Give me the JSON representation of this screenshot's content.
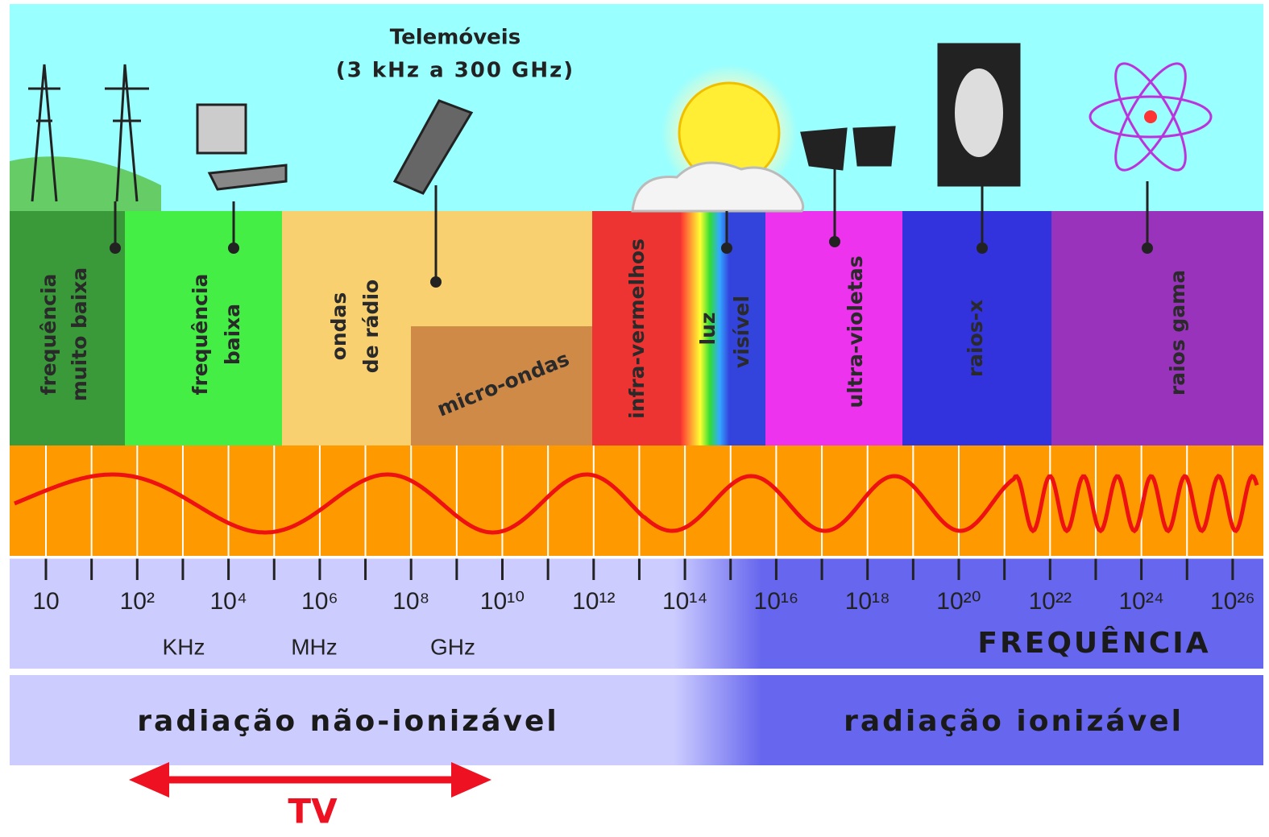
{
  "header": {
    "phones": [
      "Telemóveis",
      "(3 kHz a 300 GHz)"
    ]
  },
  "bands": [
    {
      "lines": [
        "frequência",
        "muito baixa"
      ]
    },
    {
      "lines": [
        "frequência",
        "baixa"
      ]
    },
    {
      "lines": [
        "ondas",
        "de rádio"
      ]
    },
    {
      "lines": [
        "micro-ondas"
      ]
    },
    {
      "lines": [
        "infra-vermelhos"
      ]
    },
    {
      "lines": [
        "luz",
        "visível"
      ]
    },
    {
      "lines": [
        "ultra-violetas"
      ]
    },
    {
      "lines": [
        "raios-x"
      ]
    },
    {
      "lines": [
        "raios gama"
      ]
    }
  ],
  "frequency": {
    "ticks": [
      "10",
      "10²",
      "10⁴",
      "10⁶",
      "10⁸",
      "10¹⁰",
      "10¹²",
      "10¹⁴",
      "10¹⁶",
      "10¹⁸",
      "10²⁰",
      "10²²",
      "10²⁴",
      "10²⁶"
    ],
    "units": [
      "KHz",
      "MHz",
      "GHz"
    ],
    "title": "FREQUÊNCIA"
  },
  "radiation": [
    "radiação não-ionizável",
    "radiação ionizável"
  ],
  "tv": "TV"
}
